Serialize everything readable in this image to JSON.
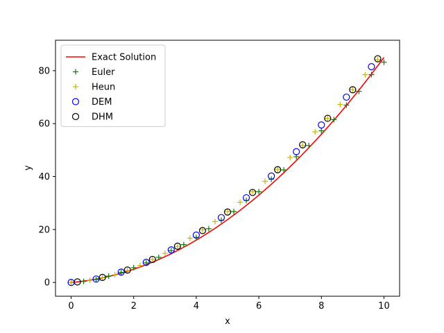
{
  "chart_data": {
    "type": "line",
    "title": "",
    "xlabel": "x",
    "ylabel": "y",
    "xlim": [
      -0.5,
      10.5
    ],
    "ylim": [
      -5.2,
      91.5
    ],
    "xticks": [
      0,
      2,
      4,
      6,
      8,
      10
    ],
    "yticks": [
      0,
      20,
      40,
      60,
      80
    ],
    "grid": false,
    "legend_position": "top-left",
    "series": [
      {
        "name": "Exact Solution",
        "kind": "line",
        "color": "#ff0000",
        "equation": "y = 0.75x^2 + x",
        "x": [
          0,
          0.5,
          1,
          1.5,
          2,
          2.5,
          3,
          3.5,
          4,
          4.5,
          5,
          5.5,
          6,
          6.5,
          7,
          7.5,
          8,
          8.5,
          9,
          9.5,
          10
        ],
        "y": [
          0,
          0.69,
          1.75,
          3.19,
          5.0,
          7.19,
          9.75,
          12.69,
          16.0,
          19.69,
          23.75,
          28.19,
          33.0,
          38.19,
          43.75,
          49.69,
          56.0,
          62.69,
          69.75,
          77.19,
          85.0
        ]
      },
      {
        "name": "Euler",
        "kind": "marker",
        "marker": "plus",
        "color": "#008000",
        "x": [
          0,
          0.4,
          0.8,
          1.2,
          1.6,
          2.0,
          2.4,
          2.8,
          3.2,
          3.6,
          4.0,
          4.4,
          4.8,
          5.2,
          5.6,
          6.0,
          6.4,
          6.8,
          7.2,
          7.6,
          8.0,
          8.4,
          8.8,
          9.2,
          9.6,
          10.0
        ],
        "y": [
          0,
          0.4,
          1.1,
          2.4,
          3.8,
          5.6,
          7.4,
          9.5,
          12.0,
          14.3,
          17.0,
          20.3,
          23.5,
          26.8,
          31.0,
          34.3,
          39.0,
          42.5,
          47.5,
          51.7,
          57.3,
          61.5,
          67.0,
          72.2,
          78.5,
          83.2
        ]
      },
      {
        "name": "Heun",
        "kind": "marker",
        "marker": "plus",
        "color": "#c8b400",
        "x": [
          0,
          0.6,
          1.0,
          1.4,
          1.8,
          2.2,
          2.6,
          3.0,
          3.4,
          3.8,
          4.2,
          4.6,
          5.0,
          5.4,
          5.8,
          6.2,
          6.6,
          7.0,
          7.4,
          7.8,
          8.2,
          8.6,
          9.0,
          9.4,
          9.8
        ],
        "y": [
          0,
          0.8,
          1.8,
          2.9,
          4.5,
          6.4,
          8.7,
          11.0,
          13.6,
          16.7,
          19.9,
          23.0,
          26.8,
          30.3,
          34.3,
          38.2,
          42.7,
          47.2,
          51.8,
          56.9,
          62.0,
          67.2,
          72.8,
          78.5,
          84.2
        ]
      },
      {
        "name": "DEM",
        "kind": "marker",
        "marker": "circle",
        "color": "#0000ff",
        "x": [
          0,
          0.8,
          1.6,
          2.4,
          3.2,
          4.0,
          4.8,
          5.6,
          6.4,
          7.2,
          8.0,
          8.8,
          9.6
        ],
        "y": [
          0,
          1.3,
          3.9,
          7.6,
          12.3,
          17.9,
          24.5,
          32.0,
          40.2,
          49.4,
          59.5,
          70.0,
          81.5
        ]
      },
      {
        "name": "DHM",
        "kind": "marker",
        "marker": "circle",
        "color": "#000000",
        "x": [
          0.2,
          1.0,
          1.8,
          2.6,
          3.4,
          4.2,
          5.0,
          5.8,
          6.6,
          7.4,
          8.2,
          9.0,
          9.8
        ],
        "y": [
          0.2,
          1.9,
          4.7,
          8.7,
          13.7,
          19.6,
          26.6,
          34.0,
          42.6,
          52.0,
          62.0,
          72.8,
          84.5
        ]
      }
    ]
  }
}
